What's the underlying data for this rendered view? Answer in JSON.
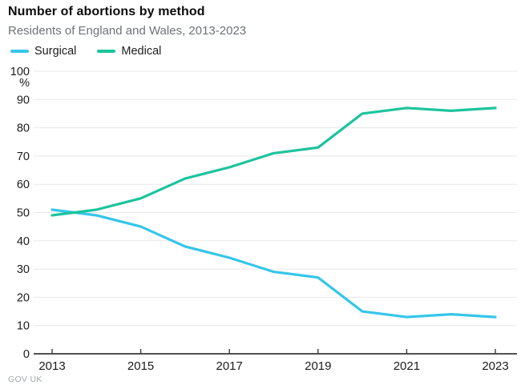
{
  "header": {
    "title": "Number of abortions by method",
    "subtitle": "Residents of England and Wales, 2013-2023"
  },
  "legend": {
    "items": [
      {
        "label": "Surgical",
        "color": "#35C6E9"
      },
      {
        "label": "Medical",
        "color": "#1CC49C"
      }
    ]
  },
  "chart_data": {
    "type": "line",
    "title": "Number of abortions by method",
    "subtitle": "Residents of England and Wales, 2013-2023",
    "x": [
      2013,
      2014,
      2015,
      2016,
      2017,
      2018,
      2019,
      2020,
      2021,
      2022,
      2023
    ],
    "series": [
      {
        "name": "Surgical",
        "color": "#35C6E9",
        "values": [
          51,
          49,
          45,
          38,
          34,
          29,
          27,
          15,
          13,
          14,
          13
        ]
      },
      {
        "name": "Medical",
        "color": "#1CC49C",
        "values": [
          49,
          51,
          55,
          62,
          66,
          71,
          73,
          85,
          87,
          86,
          87
        ]
      }
    ],
    "ylabel": "%",
    "xlabel": "",
    "ylim": [
      0,
      100
    ],
    "yticks": [
      0,
      10,
      20,
      30,
      40,
      50,
      60,
      70,
      80,
      90,
      100
    ],
    "xticks": [
      2013,
      2015,
      2017,
      2019,
      2021,
      2023
    ],
    "grid": true,
    "legend_position": "top-left"
  },
  "footer": {
    "source": "GOV UK"
  },
  "colors": {
    "grid": "#e8e8e8",
    "axis": "#3a3a3a",
    "tick_text": "#1c1c1c",
    "surgical": "#35C6E9",
    "medical": "#1CC49C"
  }
}
